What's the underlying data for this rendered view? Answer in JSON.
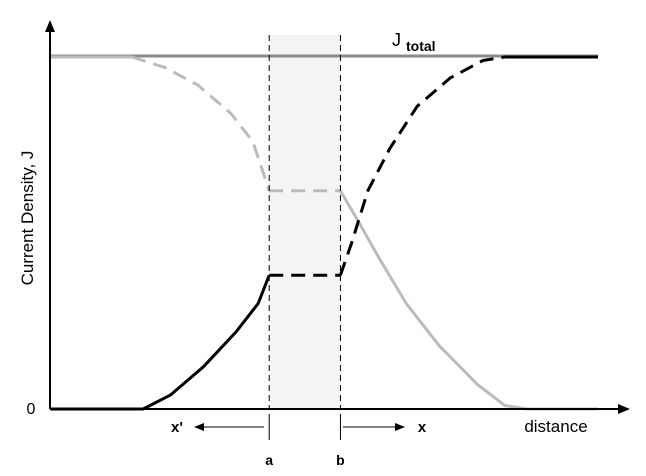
{
  "chart_data": {
    "type": "line",
    "title": "",
    "xlabel": "distance",
    "ylabel": "Current Density, J",
    "y_tick_labels": [
      "0"
    ],
    "marker_labels": {
      "a": "a",
      "b": "b"
    },
    "direction_labels": {
      "left": "x'",
      "right": "x"
    },
    "total_label": {
      "base": "J",
      "subscript": "total"
    },
    "xlim": [
      0,
      100
    ],
    "ylim": [
      0,
      100
    ],
    "region": {
      "x_start": 40,
      "x_end": 53,
      "fill": "#f4f4f4"
    },
    "total_level": 100,
    "series": [
      {
        "color": "#000000",
        "segments": [
          {
            "style": "solid",
            "points": [
              [
                0,
                0
              ],
              [
                17,
                0
              ],
              [
                22,
                4
              ],
              [
                28,
                12
              ],
              [
                34,
                22
              ],
              [
                38,
                30
              ],
              [
                40,
                38
              ]
            ]
          },
          {
            "style": "dashed",
            "points": [
              [
                40,
                38
              ],
              [
                53,
                38
              ]
            ]
          },
          {
            "style": "dashed",
            "points": [
              [
                53,
                38
              ],
              [
                55,
                47
              ],
              [
                58,
                62
              ],
              [
                62,
                74
              ],
              [
                67,
                86
              ],
              [
                73,
                94
              ],
              [
                79,
                99
              ],
              [
                83,
                100
              ]
            ]
          },
          {
            "style": "solid",
            "points": [
              [
                83,
                100
              ],
              [
                100,
                100
              ]
            ]
          }
        ]
      },
      {
        "color": "#bbbbbb",
        "segments": [
          {
            "style": "solid",
            "points": [
              [
                0,
                100
              ],
              [
                15,
                100
              ]
            ]
          },
          {
            "style": "dashed",
            "points": [
              [
                15,
                100
              ],
              [
                21,
                97
              ],
              [
                27,
                92
              ],
              [
                33,
                84
              ],
              [
                37,
                76
              ],
              [
                40,
                62
              ]
            ]
          },
          {
            "style": "dashed",
            "points": [
              [
                40,
                62
              ],
              [
                53,
                62
              ]
            ]
          },
          {
            "style": "solid",
            "points": [
              [
                53,
                62
              ],
              [
                56,
                54
              ],
              [
                60,
                43
              ],
              [
                65,
                30
              ],
              [
                71,
                18
              ],
              [
                78,
                7
              ],
              [
                83,
                1
              ],
              [
                87,
                0
              ],
              [
                100,
                0
              ]
            ]
          }
        ]
      }
    ],
    "total_line_color": "#8a8a8a"
  }
}
